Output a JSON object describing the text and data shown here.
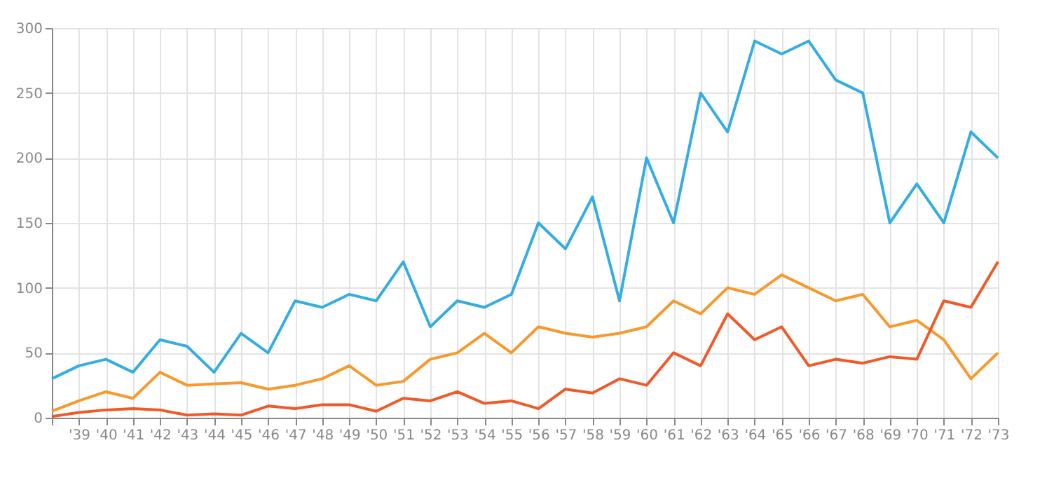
{
  "chart_data": {
    "type": "line",
    "categories": [
      null,
      "'39",
      "'40",
      "'41",
      "'42",
      "'43",
      "'44",
      "'45",
      "'46",
      "'47",
      "'48",
      "'49",
      "'50",
      "'51",
      "'52",
      "'53",
      "'54",
      "'55",
      "'56",
      "'57",
      "'58",
      "'59",
      "'60",
      "'61",
      "'62",
      "'63",
      "'64",
      "'65",
      "'66",
      "'67",
      "'68",
      "'69",
      "'70",
      "'71",
      "'72",
      "'73"
    ],
    "ylim": [
      0,
      300
    ],
    "yticks": [
      0,
      50,
      100,
      150,
      200,
      250,
      300
    ],
    "grid": true,
    "marker": "none",
    "line_style": "solid",
    "series": [
      {
        "color": "#35ade2",
        "values": [
          30,
          40,
          45,
          35,
          60,
          55,
          35,
          65,
          50,
          90,
          85,
          95,
          90,
          120,
          70,
          90,
          85,
          95,
          150,
          130,
          170,
          90,
          200,
          150,
          250,
          220,
          290,
          280,
          290,
          260,
          250,
          150,
          180,
          150,
          220,
          200
        ]
      },
      {
        "color": "#f7992d",
        "values": [
          5,
          13,
          20,
          15,
          35,
          25,
          26,
          27,
          22,
          25,
          30,
          40,
          25,
          28,
          45,
          50,
          65,
          50,
          70,
          65,
          62,
          65,
          70,
          90,
          80,
          100,
          95,
          110,
          100,
          90,
          95,
          70,
          75,
          60,
          30,
          50
        ]
      },
      {
        "color": "#f05a28",
        "values": [
          1,
          4,
          6,
          7,
          6,
          2,
          3,
          2,
          9,
          7,
          10,
          10,
          5,
          15,
          13,
          20,
          11,
          13,
          7,
          22,
          19,
          30,
          25,
          50,
          40,
          80,
          60,
          70,
          40,
          45,
          42,
          47,
          45,
          90,
          85,
          120
        ]
      }
    ]
  }
}
